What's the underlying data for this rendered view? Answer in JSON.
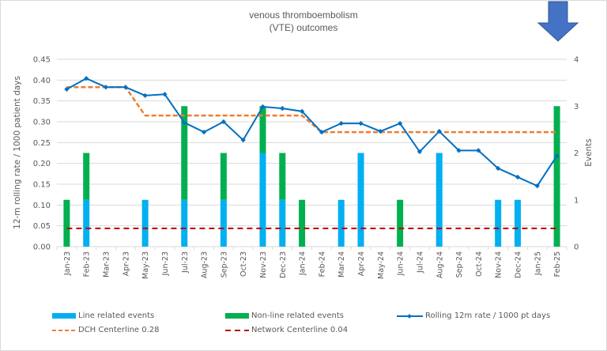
{
  "chart_data": {
    "type": "bar+line",
    "title": [
      "venous thromboembolism",
      "(VTE) outcomes"
    ],
    "ylabel": "12-m rolling rate / 1000 patient days",
    "y2label": "Events",
    "ylim": [
      0,
      0.45
    ],
    "y2lim": [
      0,
      4
    ],
    "yticks": [
      "0.00",
      "0.05",
      "0.10",
      "0.15",
      "0.20",
      "0.25",
      "0.30",
      "0.35",
      "0.40",
      "0.45"
    ],
    "y2ticks": [
      "0",
      "1",
      "2",
      "3",
      "4"
    ],
    "grid": true,
    "legend_position": "bottom",
    "categories": [
      "Jan-23",
      "Feb-23",
      "Mar-23",
      "Apr-23",
      "May-23",
      "Jun-23",
      "Jul-23",
      "Aug-23",
      "Sep-23",
      "Oct-23",
      "Nov-23",
      "Dec-23",
      "Jan-24",
      "Feb-24",
      "Mar-24",
      "Apr-24",
      "May-24",
      "Jun-24",
      "Jul-24",
      "Aug-24",
      "Sep-24",
      "Oct-24",
      "Nov-24",
      "Dec-24",
      "Jan-25",
      "Feb-25"
    ],
    "series": [
      {
        "name": "Line related events",
        "type": "stacked-bar",
        "axis": "y2",
        "color": "#00b0f0",
        "values": [
          0,
          1,
          0,
          0,
          1,
          0,
          1,
          0,
          1,
          0,
          2,
          1,
          0,
          0,
          1,
          2,
          0,
          0,
          0,
          2,
          0,
          0,
          1,
          1,
          0,
          0
        ]
      },
      {
        "name": "Non-line related events",
        "type": "stacked-bar",
        "axis": "y2",
        "color": "#00b050",
        "values": [
          1,
          1,
          0,
          0,
          0,
          0,
          2,
          0,
          1,
          0,
          1,
          1,
          1,
          0,
          0,
          0,
          0,
          1,
          0,
          0,
          0,
          0,
          0,
          0,
          0,
          3
        ]
      },
      {
        "name": "Rolling 12m rate / 1000 pt days",
        "type": "line",
        "axis": "y",
        "color": "#0070c0",
        "values": [
          0.378,
          0.404,
          0.383,
          0.383,
          0.363,
          0.366,
          0.298,
          0.275,
          0.3,
          0.256,
          0.336,
          0.332,
          0.325,
          0.275,
          0.296,
          0.296,
          0.277,
          0.296,
          0.228,
          0.277,
          0.231,
          0.231,
          0.188,
          0.167,
          0.146,
          0.218
        ]
      },
      {
        "name": "DCH Centerline 0.28",
        "type": "dashed-line",
        "axis": "y",
        "color": "#ed7d31",
        "values": [
          0.383,
          0.383,
          0.383,
          0.383,
          0.315,
          0.315,
          0.315,
          0.315,
          0.315,
          0.315,
          0.315,
          0.315,
          0.315,
          0.275,
          0.275,
          0.275,
          0.275,
          0.275,
          0.275,
          0.275,
          0.275,
          0.275,
          0.275,
          0.275,
          0.275,
          0.275
        ]
      },
      {
        "name": "Network Centerline 0.04",
        "type": "dashed-line",
        "axis": "y",
        "color": "#c00000",
        "values": [
          0.044,
          0.044,
          0.044,
          0.044,
          0.044,
          0.044,
          0.044,
          0.044,
          0.044,
          0.044,
          0.044,
          0.044,
          0.044,
          0.044,
          0.044,
          0.044,
          0.044,
          0.044,
          0.044,
          0.044,
          0.044,
          0.044,
          0.044,
          0.044,
          0.044,
          0.044
        ]
      }
    ],
    "annotations": [
      {
        "type": "arrow",
        "direction": "down",
        "color": "#4472c4",
        "meaning": "lower is better"
      }
    ]
  },
  "legend": {
    "line_related": "Line related events",
    "non_line_related": "Non-line related events",
    "rolling": "Rolling 12m rate / 1000 pt days",
    "dch": "DCH Centerline 0.28",
    "network": "Network Centerline 0.04"
  }
}
